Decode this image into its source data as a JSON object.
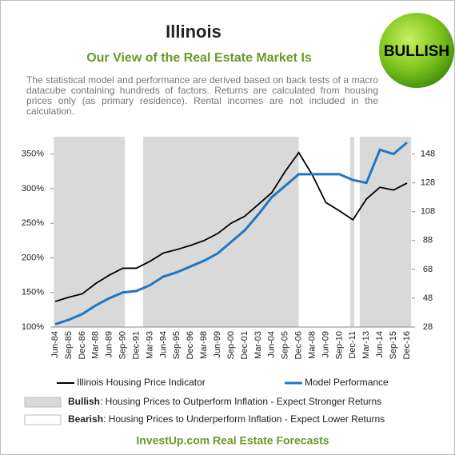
{
  "chart_data": {
    "type": "line",
    "title": "Illinois",
    "subtitle": "Our View of the Real Estate Market Is",
    "description": "The statistical model and performance are derived based on back tests of a macro datacube containing hundreds of factors. Returns are calculated from housing prices only (as primary residence). Rental incomes are not included in the calculation.",
    "badge": "BULLISH",
    "categories": [
      "Jun-84",
      "Sep-85",
      "Dec-86",
      "Mar-88",
      "Jun-89",
      "Sep-90",
      "Dec-91",
      "Mar-93",
      "Jun-94",
      "Sep-95",
      "Dec-96",
      "Mar-98",
      "Jun-99",
      "Sep-00",
      "Dec-01",
      "Mar-03",
      "Jun-04",
      "Sep-05",
      "Dec-06",
      "Mar-08",
      "Jun-09",
      "Sep-10",
      "Dec-11",
      "Mar-13",
      "Jun-14",
      "Sep-15",
      "Dec-16"
    ],
    "series": [
      {
        "name": "Illinois Housing Price Indicator",
        "color": "#000000",
        "values": [
          137,
          143,
          148,
          163,
          175,
          185,
          185,
          195,
          207,
          212,
          218,
          225,
          235,
          250,
          260,
          277,
          294,
          325,
          352,
          320,
          280,
          268,
          255,
          285,
          302,
          298,
          308
        ]
      },
      {
        "name": "Model Performance",
        "color": "#1f77c4",
        "axis": "y2",
        "values": [
          30,
          33,
          37,
          43,
          48,
          52,
          53,
          57,
          63,
          66,
          70,
          74,
          79,
          87,
          95,
          106,
          118,
          126,
          134,
          134,
          134,
          134,
          130,
          128,
          151,
          148,
          156
        ]
      }
    ],
    "ylim": [
      100,
      375
    ],
    "yticks": [
      {
        "value": 100,
        "label": "100%"
      },
      {
        "value": 150,
        "label": "150%"
      },
      {
        "value": 200,
        "label": "200%"
      },
      {
        "value": 250,
        "label": "250%"
      },
      {
        "value": 300,
        "label": "300%"
      },
      {
        "value": 350,
        "label": "350%"
      }
    ],
    "y2lim": [
      28,
      160
    ],
    "y2ticks": [
      28,
      48,
      68,
      88,
      108,
      128,
      148
    ],
    "shaded_ranges": [
      [
        -0.1,
        5.15
      ],
      [
        6.5,
        18.0
      ],
      [
        21.8,
        22.1
      ],
      [
        22.5,
        26.3
      ]
    ],
    "shade_color": "#d9d9d9",
    "shading_legend": [
      {
        "name": "Bullish",
        "text": ":  Housing Prices to Outperform  Inflation  - Expect Stronger Returns"
      },
      {
        "name": "Bearish",
        "text": ":  Housing Prices to Underperform  Inflation  - Expect Lower Returns"
      }
    ],
    "footer": "InvestUp.com  Real Estate Forecasts"
  }
}
